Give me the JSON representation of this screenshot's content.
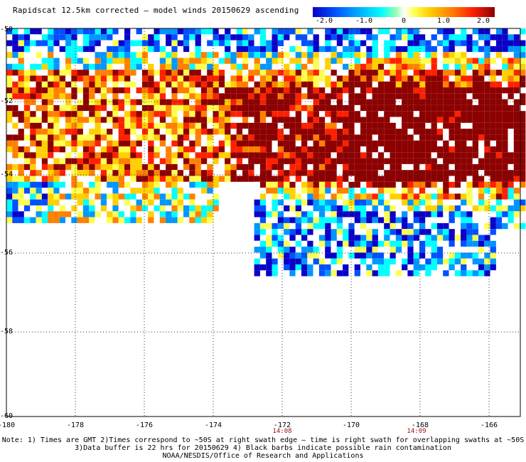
{
  "title": "Rapidscat 12.5km corrected — model winds 20150629 ascending",
  "colorbar": {
    "ticks": [
      "-2.0",
      "-1.0",
      "0",
      "1.0",
      "2.0"
    ],
    "colors": [
      "#0a00c8",
      "#0050ff",
      "#0096ff",
      "#00ffff",
      "#ffffff",
      "#ffff50",
      "#ffd000",
      "#ff8000",
      "#ff2000",
      "#8c0000"
    ]
  },
  "axes": {
    "lon_labels": [
      "-180",
      "-178",
      "-176",
      "-174",
      "-172",
      "-170",
      "-168",
      "-166"
    ],
    "lat_labels": [
      "-50",
      "-52",
      "-54",
      "-56",
      "-58",
      "-60"
    ],
    "time_labels": [
      "14:08",
      "14:09"
    ]
  },
  "notes": {
    "line1": "Note: 1) Times are GMT 2)Times correspond to ~50S at right swath edge — time is right swath for overlapping swaths at ~50S",
    "line2": "3)Data buffer is 22 hrs for 20150629 4) Black barbs indicate possible rain contamination",
    "line3": "NOAA/NESDIS/Office of Research and Applications"
  }
}
